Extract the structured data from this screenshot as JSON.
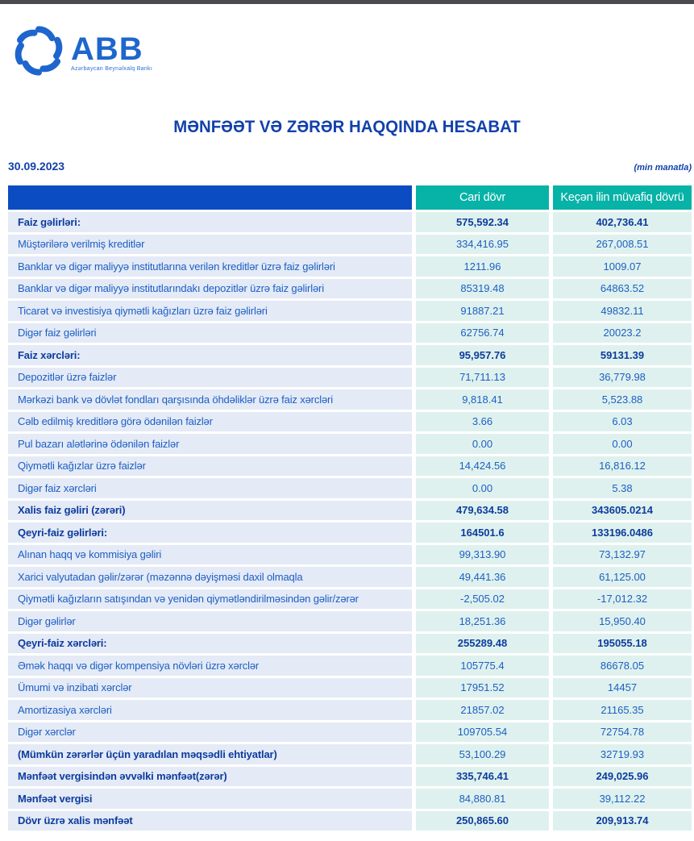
{
  "logo": {
    "brand": "ABB",
    "subtitle": "Azərbaycan Beynəlxalq Bankı"
  },
  "header": {
    "title": "MƏNFƏƏT VƏ ZƏRƏR HAQQINDA HESABAT",
    "date": "30.09.2023",
    "unit_note": "(min manatla)"
  },
  "colors": {
    "topbar": "#4a4a4f",
    "logo_blue": "#1e66cd",
    "title_navy": "#1241ab",
    "header_corner_blue": "#0b4cc2",
    "header_teal": "#07b2a7",
    "label_cell_bg": "#e4eaf6",
    "value_cell_bg": "#dff1ee",
    "text_blue": "#1c5fc4",
    "text_bold_navy": "#0c3c9e"
  },
  "table": {
    "columns": [
      "Cari dövr",
      "Keçən ilin müvafiq dövrü"
    ],
    "rows": [
      {
        "label": "Faiz gəlirləri:",
        "current": "575,592.34",
        "previous": "402,736.41",
        "label_bold": true,
        "value_bold": true
      },
      {
        "label": "Müştərilərə verilmiş kreditlər",
        "current": "334,416.95",
        "previous": "267,008.51",
        "label_bold": false,
        "value_bold": false
      },
      {
        "label": "Banklar və digər maliyyə institutlarına verilən kreditlər üzrə faiz gəlirləri",
        "current": "1211.96",
        "previous": "1009.07",
        "label_bold": false,
        "value_bold": false
      },
      {
        "label": "Banklar və digər maliyyə institutlarındakı depozitlər üzrə faiz gəlirləri",
        "current": "85319.48",
        "previous": "64863.52",
        "label_bold": false,
        "value_bold": false
      },
      {
        "label": "Ticarət və investisiya qiymətli kağızları üzrə faiz gəlirləri",
        "current": "91887.21",
        "previous": "49832.11",
        "label_bold": false,
        "value_bold": false
      },
      {
        "label": "Digər faiz gəlirləri",
        "current": "62756.74",
        "previous": "20023.2",
        "label_bold": false,
        "value_bold": false
      },
      {
        "label": "Faiz xərcləri:",
        "current": "95,957.76",
        "previous": "59131.39",
        "label_bold": true,
        "value_bold": true
      },
      {
        "label": "Depozitlər üzrə faizlər",
        "current": "71,711.13",
        "previous": "36,779.98",
        "label_bold": false,
        "value_bold": false
      },
      {
        "label": "Mərkəzi bank və dövlət fondları qarşısında öhdəliklər üzrə faiz xərcləri",
        "current": "9,818.41",
        "previous": "5,523.88",
        "label_bold": false,
        "value_bold": false
      },
      {
        "label": "Cəlb edilmiş kreditlərə görə ödənilən faizlər",
        "current": "3.66",
        "previous": "6.03",
        "label_bold": false,
        "value_bold": false
      },
      {
        "label": "Pul bazarı alətlərinə ödənilən faizlər",
        "current": "0.00",
        "previous": "0.00",
        "label_bold": false,
        "value_bold": false
      },
      {
        "label": "Qiymətli kağızlar üzrə faizlər",
        "current": "14,424.56",
        "previous": "16,816.12",
        "label_bold": false,
        "value_bold": false
      },
      {
        "label": "Digər faiz xərcləri",
        "current": "0.00",
        "previous": "5.38",
        "label_bold": false,
        "value_bold": false
      },
      {
        "label": "Xalis faiz gəliri (zərəri)",
        "current": "479,634.58",
        "previous": "343605.0214",
        "label_bold": true,
        "value_bold": true
      },
      {
        "label": "Qeyri-faiz gəlirləri:",
        "current": "164501.6",
        "previous": "133196.0486",
        "label_bold": true,
        "value_bold": true
      },
      {
        "label": "Alınan haqq və kommisiya gəliri",
        "current": "99,313.90",
        "previous": "73,132.97",
        "label_bold": false,
        "value_bold": false
      },
      {
        "label": "Xarici valyutadan gəlir/zərər (məzənnə dəyişməsi daxil olmaqla",
        "current": "49,441.36",
        "previous": "61,125.00",
        "label_bold": false,
        "value_bold": false
      },
      {
        "label": "Qiymətli kağızların satışından və yenidən qiymətləndirilməsindən gəlir/zərər",
        "current": "-2,505.02",
        "previous": "-17,012.32",
        "label_bold": false,
        "value_bold": false
      },
      {
        "label": "Digər gəlirlər",
        "current": "18,251.36",
        "previous": "15,950.40",
        "label_bold": false,
        "value_bold": false
      },
      {
        "label": "Qeyri-faiz xərcləri:",
        "current": "255289.48",
        "previous": "195055.18",
        "label_bold": true,
        "value_bold": true
      },
      {
        "label": "Əmək haqqı və digər kompensiya növləri üzrə xərclər",
        "current": "105775.4",
        "previous": "86678.05",
        "label_bold": false,
        "value_bold": false
      },
      {
        "label": "Ümumi və inzibati xərclər",
        "current": "17951.52",
        "previous": "14457",
        "label_bold": false,
        "value_bold": false
      },
      {
        "label": "Amortizasiya xərcləri",
        "current": "21857.02",
        "previous": "21165.35",
        "label_bold": false,
        "value_bold": false
      },
      {
        "label": "Digər xərclər",
        "current": "109705.54",
        "previous": "72754.78",
        "label_bold": false,
        "value_bold": false
      },
      {
        "label": "(Mümkün zərərlər üçün yaradılan məqsədli ehtiyatlar)",
        "current": "53,100.29",
        "previous": "32719.93",
        "label_bold": true,
        "value_bold": false
      },
      {
        "label": "Mənfəət vergisindən əvvəlki mənfəət(zərər)",
        "current": "335,746.41",
        "previous": "249,025.96",
        "label_bold": true,
        "value_bold": true
      },
      {
        "label": "Mənfəət vergisi",
        "current": "84,880.81",
        "previous": "39,112.22",
        "label_bold": true,
        "value_bold": false
      },
      {
        "label": "Dövr üzrə xalis mənfəət",
        "current": "250,865.60",
        "previous": "209,913.74",
        "label_bold": true,
        "value_bold": true
      }
    ]
  }
}
